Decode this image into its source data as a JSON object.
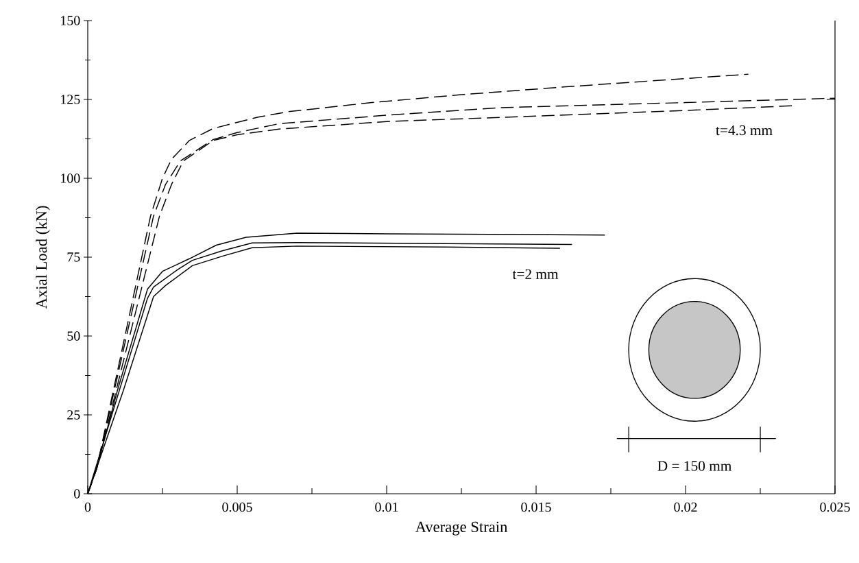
{
  "chart_data": {
    "type": "line",
    "xlabel": "Average Strain",
    "ylabel": "Axial Load  (kN)",
    "xlim": [
      0,
      0.025
    ],
    "ylim": [
      0,
      150
    ],
    "xticks": [
      0,
      0.005,
      0.01,
      0.015,
      0.02,
      0.025
    ],
    "yticks": [
      0,
      25,
      50,
      75,
      100,
      125,
      150
    ],
    "marker": "none",
    "series": [
      {
        "color": "#000000",
        "line_style": "solid",
        "x": [
          0,
          0.0003,
          0.001,
          0.002,
          0.0025,
          0.0034,
          0.0043,
          0.0053,
          0.007,
          0.01,
          0.0173
        ],
        "values": [
          0,
          8,
          33,
          64.9,
          70.5,
          74.5,
          78.8,
          81.3,
          82.6,
          82.4,
          82.0
        ]
      },
      {
        "color": "#000000",
        "line_style": "solid",
        "x": [
          0,
          0.001,
          0.002,
          0.0022,
          0.003,
          0.0035,
          0.0045,
          0.0055,
          0.007,
          0.012,
          0.0162
        ],
        "values": [
          0,
          31,
          62,
          65.5,
          71,
          74,
          77,
          79.5,
          79.6,
          79.3,
          79.0
        ]
      },
      {
        "color": "#000000",
        "line_style": "solid",
        "x": [
          0,
          0.0012,
          0.0022,
          0.0026,
          0.0035,
          0.0045,
          0.0055,
          0.007,
          0.012,
          0.0158
        ],
        "values": [
          0,
          33,
          62.5,
          66,
          72.3,
          75.3,
          78,
          78.5,
          78.2,
          77.8
        ]
      },
      {
        "color": "#000000",
        "line_style": "dashed",
        "x": [
          0,
          0.0003,
          0.0021,
          0.0025,
          0.0028,
          0.0034,
          0.0042,
          0.0057,
          0.0067,
          0.0095,
          0.0125,
          0.016,
          0.0221
        ],
        "values": [
          0,
          8,
          88,
          100,
          106,
          112,
          115.8,
          119.4,
          121.1,
          124,
          126.5,
          129,
          133
        ]
      },
      {
        "color": "#000000",
        "line_style": "dashed",
        "x": [
          0,
          0.0003,
          0.0022,
          0.0026,
          0.0031,
          0.0042,
          0.005,
          0.0064,
          0.01,
          0.0138,
          0.02,
          0.025
        ],
        "values": [
          0,
          8,
          88,
          98,
          105.5,
          112.3,
          114.5,
          117.3,
          120,
          122.4,
          124,
          125.4
        ]
      },
      {
        "color": "#000000",
        "line_style": "dashed",
        "x": [
          0,
          0.0003,
          0.0024,
          0.0028,
          0.0032,
          0.0042,
          0.005,
          0.0064,
          0.01,
          0.0138,
          0.02,
          0.0236
        ],
        "values": [
          0,
          8,
          88,
          98,
          105.5,
          112,
          113.8,
          115.6,
          118,
          119.3,
          121.5,
          123
        ]
      }
    ],
    "annotations": [
      "t=4.3 mm",
      "t=2 mm",
      "D = 150 mm"
    ]
  }
}
